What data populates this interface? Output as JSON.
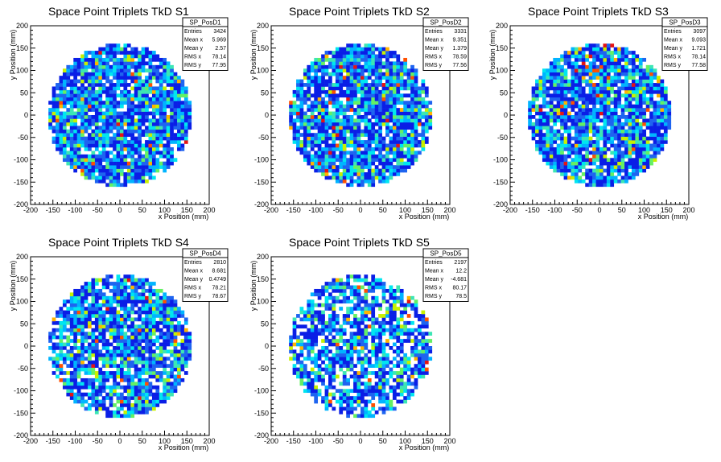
{
  "chart_data": [
    {
      "type": "heatmap",
      "title": "Space Point Triplets TkD S1",
      "xlabel": "x Position (mm)",
      "ylabel": "y Position (mm)",
      "xlim": [
        -200,
        200
      ],
      "ylim": [
        -200,
        200
      ],
      "ticks": [
        -200,
        -150,
        -100,
        -50,
        0,
        50,
        100,
        150,
        200
      ],
      "disc_radius": 160,
      "stats": {
        "name": "SP_PosD1",
        "rows": [
          [
            "Entries",
            "3424"
          ],
          [
            "Mean x",
            "5.969"
          ],
          [
            "Mean y",
            "2.57"
          ],
          [
            "RMS x",
            "78.14"
          ],
          [
            "RMS y",
            "77.95"
          ]
        ]
      }
    },
    {
      "type": "heatmap",
      "title": "Space Point Triplets TkD S2",
      "xlabel": "x Position (mm)",
      "ylabel": "y Position (mm)",
      "xlim": [
        -200,
        200
      ],
      "ylim": [
        -200,
        200
      ],
      "ticks": [
        -200,
        -150,
        -100,
        -50,
        0,
        50,
        100,
        150,
        200
      ],
      "disc_radius": 160,
      "stats": {
        "name": "SP_PosD2",
        "rows": [
          [
            "Entries",
            "3331"
          ],
          [
            "Mean x",
            "9.351"
          ],
          [
            "Mean y",
            "1.379"
          ],
          [
            "RMS x",
            "78.59"
          ],
          [
            "RMS y",
            "77.56"
          ]
        ]
      }
    },
    {
      "type": "heatmap",
      "title": "Space Point Triplets TkD S3",
      "xlabel": "x Position (mm)",
      "ylabel": "y Position (mm)",
      "xlim": [
        -200,
        200
      ],
      "ylim": [
        -200,
        200
      ],
      "ticks": [
        -200,
        -150,
        -100,
        -50,
        0,
        50,
        100,
        150,
        200
      ],
      "disc_radius": 160,
      "stats": {
        "name": "SP_PosD3",
        "rows": [
          [
            "Entries",
            "3097"
          ],
          [
            "Mean x",
            "9.093"
          ],
          [
            "Mean y",
            "1.721"
          ],
          [
            "RMS x",
            "78.14"
          ],
          [
            "RMS y",
            "77.58"
          ]
        ]
      }
    },
    {
      "type": "heatmap",
      "title": "Space Point Triplets TkD S4",
      "xlabel": "x Position (mm)",
      "ylabel": "y Position (mm)",
      "xlim": [
        -200,
        200
      ],
      "ylim": [
        -200,
        200
      ],
      "ticks": [
        -200,
        -150,
        -100,
        -50,
        0,
        50,
        100,
        150,
        200
      ],
      "disc_radius": 160,
      "stats": {
        "name": "SP_PosD4",
        "rows": [
          [
            "Entries",
            "2810"
          ],
          [
            "Mean x",
            "8.681"
          ],
          [
            "Mean y",
            "0.4749"
          ],
          [
            "RMS x",
            "78.21"
          ],
          [
            "RMS y",
            "78.67"
          ]
        ]
      }
    },
    {
      "type": "heatmap",
      "title": "Space Point Triplets TkD S5",
      "xlabel": "x Position (mm)",
      "ylabel": "y Position (mm)",
      "xlim": [
        -200,
        200
      ],
      "ylim": [
        -200,
        200
      ],
      "ticks": [
        -200,
        -150,
        -100,
        -50,
        0,
        50,
        100,
        150,
        200
      ],
      "disc_radius": 160,
      "stats": {
        "name": "SP_PosD5",
        "rows": [
          [
            "Entries",
            "2197"
          ],
          [
            "Mean x",
            "12.2"
          ],
          [
            "Mean y",
            "-4.681"
          ],
          [
            "RMS x",
            "80.17"
          ],
          [
            "RMS y",
            "78.5"
          ]
        ]
      }
    }
  ],
  "colors": {
    "palette": [
      "#0a1ee6",
      "#1e64f0",
      "#00b4ff",
      "#00e6f0",
      "#3ce6b4",
      "#64f064",
      "#c8f000",
      "#ffb400",
      "#ff5000",
      "#e61414"
    ]
  }
}
